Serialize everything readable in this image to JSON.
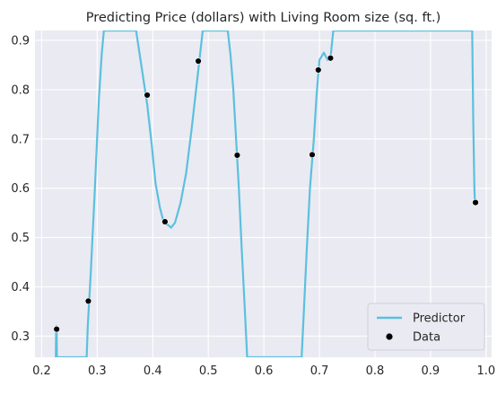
{
  "chart_data": {
    "type": "line",
    "title": "Predicting Price (dollars) with Living Room size (sq. ft.)",
    "xlabel": "",
    "ylabel": "",
    "xlim": [
      0.188,
      1.01
    ],
    "ylim": [
      0.257,
      0.92
    ],
    "xticks": [
      "0.2",
      "0.3",
      "0.4",
      "0.5",
      "0.6",
      "0.7",
      "0.8",
      "0.9",
      "1.0"
    ],
    "xtick_values": [
      0.2,
      0.3,
      0.4,
      0.5,
      0.6,
      0.7,
      0.8,
      0.9,
      1.0
    ],
    "yticks": [
      "0.3",
      "0.4",
      "0.5",
      "0.6",
      "0.7",
      "0.8",
      "0.9"
    ],
    "ytick_values": [
      0.3,
      0.4,
      0.5,
      0.6,
      0.7,
      0.8,
      0.9
    ],
    "grid": true,
    "legend_position": "bottom-right",
    "background_color": "#eaeaf2",
    "series": [
      {
        "name": "Predictor",
        "kind": "line",
        "color": "#5bc0de",
        "points": [
          [
            0.2255,
            0.257
          ],
          [
            0.226,
            0.31
          ],
          [
            0.2265,
            0.32
          ],
          [
            0.227,
            0.31
          ],
          [
            0.2275,
            0.257
          ],
          [
            0.281,
            0.257
          ],
          [
            0.283,
            0.32
          ],
          [
            0.288,
            0.42
          ],
          [
            0.295,
            0.58
          ],
          [
            0.303,
            0.78
          ],
          [
            0.308,
            0.87
          ],
          [
            0.312,
            0.92
          ],
          [
            0.37,
            0.92
          ],
          [
            0.378,
            0.86
          ],
          [
            0.39,
            0.77
          ],
          [
            0.398,
            0.69
          ],
          [
            0.405,
            0.61
          ],
          [
            0.413,
            0.56
          ],
          [
            0.42,
            0.53
          ],
          [
            0.428,
            0.525
          ],
          [
            0.433,
            0.52
          ],
          [
            0.44,
            0.53
          ],
          [
            0.45,
            0.57
          ],
          [
            0.46,
            0.63
          ],
          [
            0.47,
            0.72
          ],
          [
            0.478,
            0.8
          ],
          [
            0.485,
            0.87
          ],
          [
            0.49,
            0.92
          ],
          [
            0.535,
            0.92
          ],
          [
            0.54,
            0.87
          ],
          [
            0.545,
            0.8
          ],
          [
            0.55,
            0.7
          ],
          [
            0.555,
            0.6
          ],
          [
            0.56,
            0.48
          ],
          [
            0.565,
            0.37
          ],
          [
            0.57,
            0.257
          ],
          [
            0.668,
            0.257
          ],
          [
            0.672,
            0.35
          ],
          [
            0.677,
            0.47
          ],
          [
            0.683,
            0.6
          ],
          [
            0.69,
            0.7
          ],
          [
            0.695,
            0.79
          ],
          [
            0.7,
            0.86
          ],
          [
            0.708,
            0.875
          ],
          [
            0.715,
            0.86
          ],
          [
            0.72,
            0.865
          ],
          [
            0.725,
            0.92
          ],
          [
            0.975,
            0.92
          ],
          [
            0.977,
            0.73
          ],
          [
            0.979,
            0.6
          ],
          [
            0.98,
            0.57
          ]
        ]
      },
      {
        "name": "Data",
        "kind": "scatter",
        "color": "#000000",
        "points": [
          [
            0.227,
            0.314
          ],
          [
            0.284,
            0.371
          ],
          [
            0.39,
            0.789
          ],
          [
            0.422,
            0.532
          ],
          [
            0.482,
            0.858
          ],
          [
            0.552,
            0.667
          ],
          [
            0.687,
            0.668
          ],
          [
            0.698,
            0.84
          ],
          [
            0.72,
            0.864
          ],
          [
            0.981,
            0.571
          ]
        ]
      }
    ]
  }
}
